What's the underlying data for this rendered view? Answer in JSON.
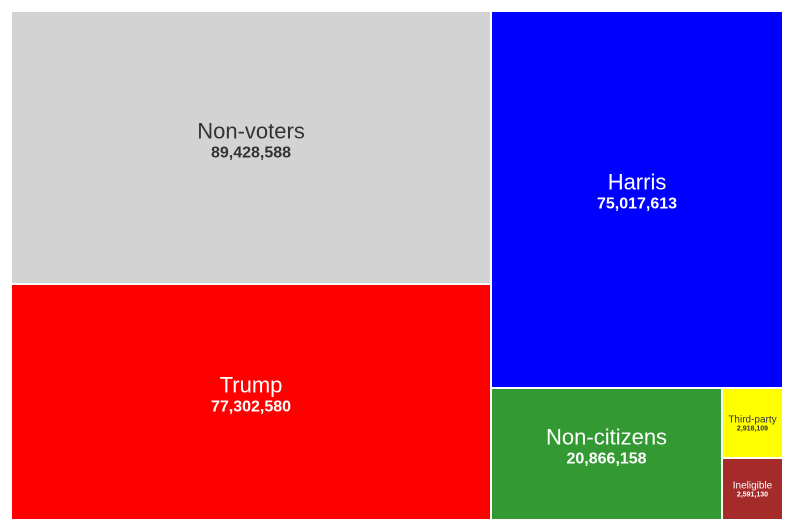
{
  "chart_data": {
    "type": "treemap",
    "title": "",
    "items": [
      {
        "name": "Non-voters",
        "value": 89428588,
        "value_label": "89,428,588",
        "color": "#d3d3d3",
        "text_color": "#333333"
      },
      {
        "name": "Trump",
        "value": 77302580,
        "value_label": "77,302,580",
        "color": "#ff0000",
        "text_color": "#ffffff"
      },
      {
        "name": "Harris",
        "value": 75017613,
        "value_label": "75,017,613",
        "color": "#0000ff",
        "text_color": "#ffffff"
      },
      {
        "name": "Non-citizens",
        "value": 20866158,
        "value_label": "20,866,158",
        "color": "#339933",
        "text_color": "#ffffff"
      },
      {
        "name": "Third-party",
        "value": 2918109,
        "value_label": "2,918,109",
        "color": "#ffff00",
        "text_color": "#333333"
      },
      {
        "name": "Ineligible",
        "value": 2591130,
        "value_label": "2,591,130",
        "color": "#a52a2a",
        "text_color": "#ffffff"
      }
    ]
  }
}
